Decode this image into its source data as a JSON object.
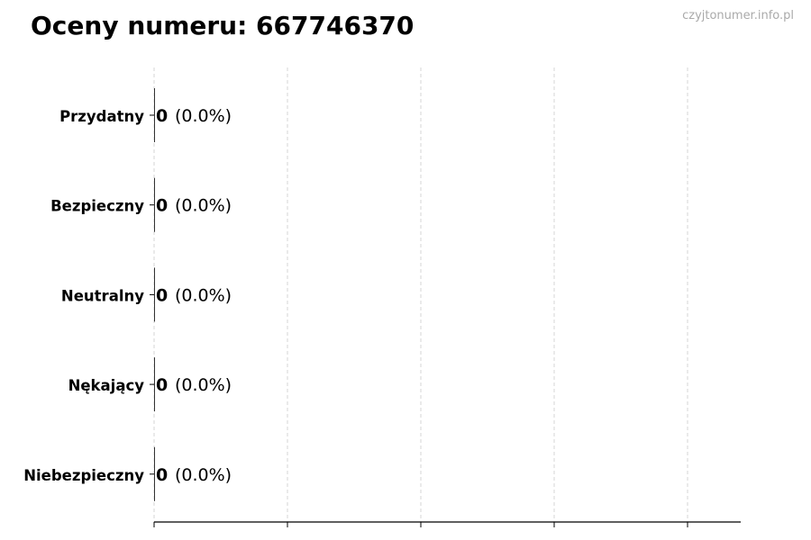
{
  "chart_data": {
    "type": "bar",
    "orientation": "horizontal",
    "title": "Oceny numeru: 667746370",
    "categories": [
      "Przydatny",
      "Bezpieczny",
      "Neutralny",
      "Nękający",
      "Niebezpieczny"
    ],
    "values": [
      0,
      0,
      0,
      0,
      0
    ],
    "percent_labels": [
      "(0.0%)",
      "(0.0%)",
      "(0.0%)",
      "(0.0%)",
      "(0.0%)"
    ],
    "xlabel": "",
    "ylabel": "",
    "grid": "vertical dashed",
    "x_tick_labels_shown": false,
    "bar_color": "#333333"
  },
  "watermark": "czyjtonumer.info.pl"
}
